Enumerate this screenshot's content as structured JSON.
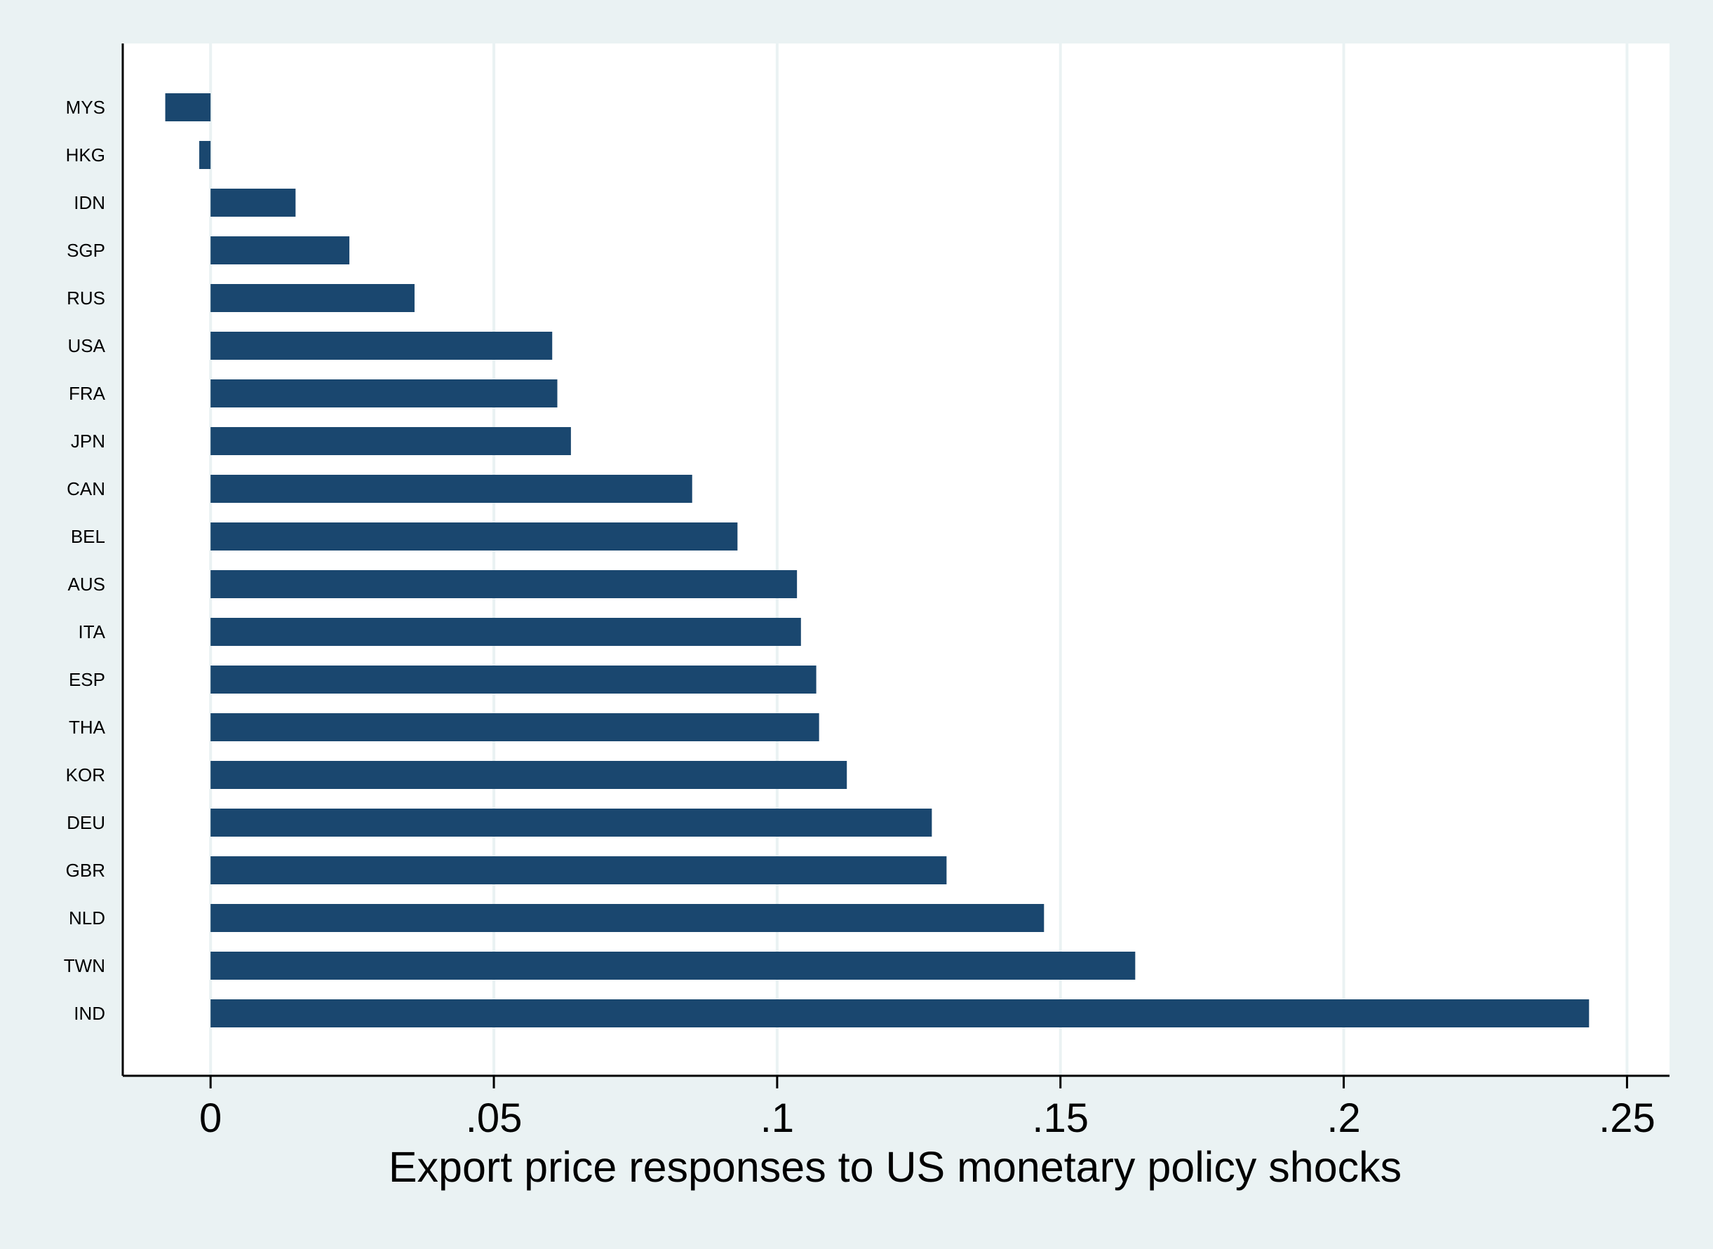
{
  "chart_data": {
    "type": "bar",
    "orientation": "horizontal",
    "title": "",
    "xlabel": "Export price responses to US monetary policy shocks",
    "ylabel": "",
    "categories": [
      "MYS",
      "HKG",
      "IDN",
      "SGP",
      "RUS",
      "USA",
      "FRA",
      "JPN",
      "CAN",
      "BEL",
      "AUS",
      "ITA",
      "ESP",
      "THA",
      "KOR",
      "DEU",
      "GBR",
      "NLD",
      "TWN",
      "IND"
    ],
    "values": [
      -0.008,
      -0.002,
      0.015,
      0.0245,
      0.036,
      0.0603,
      0.0612,
      0.0636,
      0.085,
      0.093,
      0.1035,
      0.1042,
      0.1069,
      0.1074,
      0.1123,
      0.1273,
      0.1299,
      0.1471,
      0.1632,
      0.2433
    ],
    "xlim": [
      -0.0155,
      0.2575
    ],
    "xticks": [
      0,
      0.05,
      0.1,
      0.15,
      0.2,
      0.25
    ],
    "xtick_labels": [
      "0",
      ".05",
      ".1",
      ".15",
      ".2",
      ".25"
    ],
    "grid": true,
    "colors": {
      "bar": "#1a476f",
      "outer_background": "#eaf2f3",
      "plot_background": "#ffffff",
      "grid": "#eaf2f3"
    }
  }
}
